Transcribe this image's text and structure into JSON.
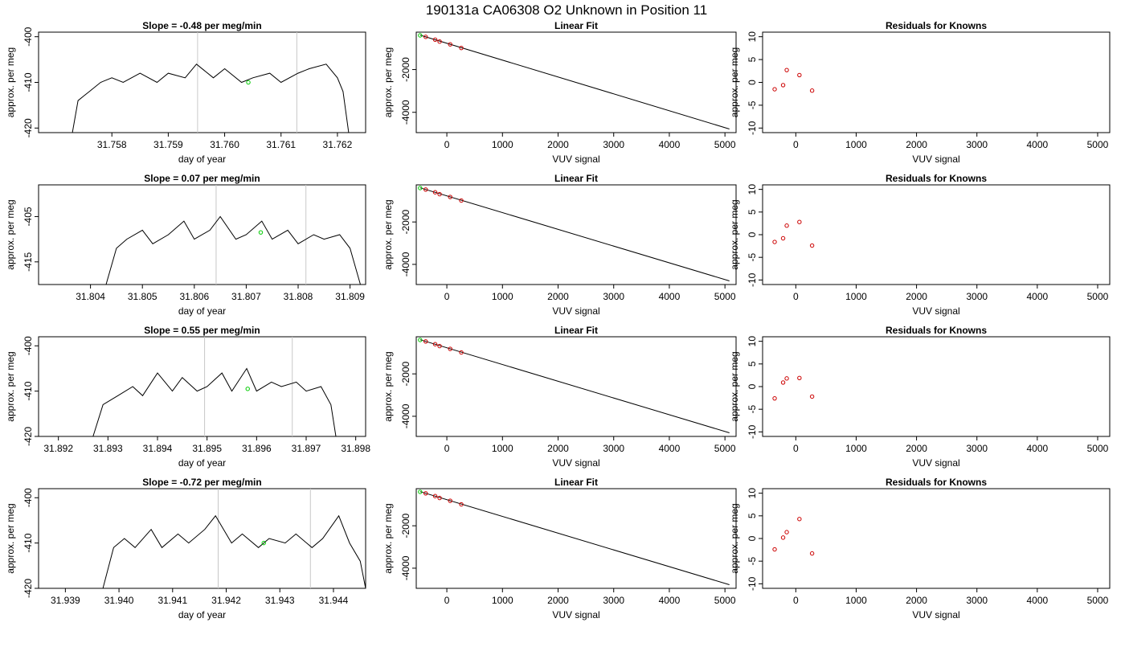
{
  "main_title": "190131a     CA06308   O2 Unknown in Position  11",
  "colors": {
    "trace": "#000000",
    "fit_line": "#000000",
    "known_point": "#cc0000",
    "unknown_point": "#00cc00",
    "marker_line": "#c8c8c8"
  },
  "chart_data": [
    {
      "row": 1,
      "column": "time-series",
      "type": "line",
      "title": "Slope =  -0.48  per meg/min",
      "xlabel": "day of year",
      "ylabel": "approx. per meg",
      "xlim": [
        31.7567,
        31.7625
      ],
      "ylim": [
        -421,
        -399
      ],
      "xticks": [
        "31.758",
        "31.759",
        "31.760",
        "31.761",
        "31.762"
      ],
      "yticks": [
        "-400",
        "-410",
        "-420"
      ],
      "vlines": [
        31.75952,
        31.76128
      ],
      "unknown_point": {
        "x": 31.76042,
        "y": -410.0
      },
      "series": [
        {
          "x": [
            31.7573,
            31.7574,
            31.7575,
            31.7576,
            31.7578,
            31.758,
            31.7582,
            31.7585,
            31.7588,
            31.759,
            31.7593,
            31.7595,
            31.7598,
            31.76,
            31.7603,
            31.7605,
            31.7608,
            31.761,
            31.7613,
            31.7615,
            31.7618,
            31.762,
            31.7621,
            31.7622
          ],
          "y": [
            -421,
            -414,
            -413,
            -412,
            -410,
            -409,
            -410,
            -408,
            -410,
            -408,
            -409,
            -406,
            -409,
            -407,
            -410,
            -409,
            -408,
            -410,
            -408,
            -407,
            -406,
            -409,
            -412,
            -421
          ]
        }
      ]
    },
    {
      "row": 1,
      "column": "fit",
      "type": "scatter",
      "title": "Linear Fit",
      "xlabel": "VUV signal",
      "ylabel": "approx. per meg",
      "xlim": [
        -550,
        5200
      ],
      "ylim": [
        -4950,
        -250
      ],
      "xticks": [
        "0",
        "1000",
        "2000",
        "3000",
        "4000",
        "5000"
      ],
      "yticks": [
        "-2000",
        "-4000"
      ],
      "fit_line": {
        "x": [
          -480,
          5080
        ],
        "y": [
          -390,
          -4780
        ]
      },
      "knowns": {
        "x": [
          -380,
          -210,
          -130,
          60,
          260
        ],
        "y": [
          -470,
          -600,
          -690,
          -820,
          -990
        ]
      },
      "unknown": {
        "x": [
          -480
        ],
        "y": [
          -400
        ]
      }
    },
    {
      "row": 1,
      "column": "residuals",
      "type": "scatter",
      "title": "Residuals for Knowns",
      "xlabel": "VUV signal",
      "ylabel": "approx. per meg",
      "xlim": [
        -550,
        5200
      ],
      "ylim": [
        -11,
        11
      ],
      "xticks": [
        "0",
        "1000",
        "2000",
        "3000",
        "4000",
        "5000"
      ],
      "yticks": [
        "10",
        "5",
        "0",
        "-5",
        "-10"
      ],
      "knowns": {
        "x": [
          -350,
          -210,
          -150,
          60,
          270
        ],
        "y": [
          -1.5,
          -0.6,
          2.7,
          1.6,
          -1.8
        ]
      }
    },
    {
      "row": 2,
      "column": "time-series",
      "type": "line",
      "title": "Slope =  0.07  per meg/min",
      "xlabel": "day of year",
      "ylabel": "approx. per meg",
      "xlim": [
        31.803,
        31.8093
      ],
      "ylim": [
        -420,
        -398
      ],
      "xticks": [
        "31.804",
        "31.805",
        "31.806",
        "31.807",
        "31.808",
        "31.809"
      ],
      "yticks": [
        "-405",
        "-415"
      ],
      "vlines": [
        31.80642,
        31.80815
      ],
      "unknown_point": {
        "x": 31.80728,
        "y": -408.5
      },
      "series": [
        {
          "x": [
            31.8043,
            31.8045,
            31.8047,
            31.805,
            31.8052,
            31.8055,
            31.8058,
            31.806,
            31.8063,
            31.8065,
            31.8068,
            31.807,
            31.8073,
            31.8075,
            31.8078,
            31.808,
            31.8083,
            31.8085,
            31.8088,
            31.809,
            31.8092
          ],
          "y": [
            -420,
            -412,
            -410,
            -408,
            -411,
            -409,
            -406,
            -410,
            -408,
            -405,
            -410,
            -409,
            -406,
            -410,
            -408,
            -411,
            -409,
            -410,
            -409,
            -412,
            -420
          ]
        }
      ]
    },
    {
      "row": 2,
      "column": "fit",
      "type": "scatter",
      "title": "Linear Fit",
      "xlabel": "VUV signal",
      "ylabel": "approx. per meg",
      "xlim": [
        -550,
        5200
      ],
      "ylim": [
        -4950,
        -250
      ],
      "xticks": [
        "0",
        "1000",
        "2000",
        "3000",
        "4000",
        "5000"
      ],
      "yticks": [
        "-2000",
        "-4000"
      ],
      "fit_line": {
        "x": [
          -480,
          5080
        ],
        "y": [
          -390,
          -4780
        ]
      },
      "knowns": {
        "x": [
          -380,
          -210,
          -130,
          60,
          260
        ],
        "y": [
          -470,
          -600,
          -690,
          -820,
          -990
        ]
      },
      "unknown": {
        "x": [
          -480
        ],
        "y": [
          -400
        ]
      }
    },
    {
      "row": 2,
      "column": "residuals",
      "type": "scatter",
      "title": "Residuals for Knowns",
      "xlabel": "VUV signal",
      "ylabel": "approx. per meg",
      "xlim": [
        -550,
        5200
      ],
      "ylim": [
        -11,
        11
      ],
      "xticks": [
        "0",
        "1000",
        "2000",
        "3000",
        "4000",
        "5000"
      ],
      "yticks": [
        "10",
        "5",
        "0",
        "-5",
        "-10"
      ],
      "knowns": {
        "x": [
          -350,
          -210,
          -150,
          60,
          270
        ],
        "y": [
          -1.6,
          -0.8,
          2.0,
          2.8,
          -2.4
        ]
      }
    },
    {
      "row": 3,
      "column": "time-series",
      "type": "line",
      "title": "Slope =  0.55  per meg/min",
      "xlabel": "day of year",
      "ylabel": "approx. per meg",
      "xlim": [
        31.8916,
        31.8982
      ],
      "ylim": [
        -420,
        -398
      ],
      "xticks": [
        "31.892",
        "31.893",
        "31.894",
        "31.895",
        "31.896",
        "31.897",
        "31.898"
      ],
      "yticks": [
        "-400",
        "-410",
        "-420"
      ],
      "vlines": [
        31.89495,
        31.89672
      ],
      "unknown_point": {
        "x": 31.89582,
        "y": -409.5
      },
      "series": [
        {
          "x": [
            31.8927,
            31.8929,
            31.8932,
            31.8935,
            31.8937,
            31.894,
            31.8943,
            31.8945,
            31.8948,
            31.895,
            31.8953,
            31.8955,
            31.8958,
            31.896,
            31.8963,
            31.8965,
            31.8968,
            31.897,
            31.8973,
            31.8975,
            31.8976
          ],
          "y": [
            -420,
            -413,
            -411,
            -409,
            -411,
            -406,
            -410,
            -407,
            -410,
            -409,
            -406,
            -410,
            -405,
            -410,
            -408,
            -409,
            -408,
            -410,
            -409,
            -413,
            -420
          ]
        }
      ]
    },
    {
      "row": 3,
      "column": "fit",
      "type": "scatter",
      "title": "Linear Fit",
      "xlabel": "VUV signal",
      "ylabel": "approx. per meg",
      "xlim": [
        -550,
        5200
      ],
      "ylim": [
        -4950,
        -250
      ],
      "xticks": [
        "0",
        "1000",
        "2000",
        "3000",
        "4000",
        "5000"
      ],
      "yticks": [
        "-2000",
        "-4000"
      ],
      "fit_line": {
        "x": [
          -480,
          5080
        ],
        "y": [
          -390,
          -4780
        ]
      },
      "knowns": {
        "x": [
          -380,
          -210,
          -130,
          60,
          260
        ],
        "y": [
          -470,
          -600,
          -690,
          -820,
          -990
        ]
      },
      "unknown": {
        "x": [
          -480
        ],
        "y": [
          -400
        ]
      }
    },
    {
      "row": 3,
      "column": "residuals",
      "type": "scatter",
      "title": "Residuals for Knowns",
      "xlabel": "VUV signal",
      "ylabel": "approx. per meg",
      "xlim": [
        -550,
        5200
      ],
      "ylim": [
        -11,
        11
      ],
      "xticks": [
        "0",
        "1000",
        "2000",
        "3000",
        "4000",
        "5000"
      ],
      "yticks": [
        "10",
        "5",
        "0",
        "-5",
        "-10"
      ],
      "knowns": {
        "x": [
          -350,
          -210,
          -150,
          60,
          270
        ],
        "y": [
          -2.6,
          0.9,
          1.8,
          1.9,
          -2.2
        ]
      }
    },
    {
      "row": 4,
      "column": "time-series",
      "type": "line",
      "title": "Slope =  -0.72  per meg/min",
      "xlabel": "day of year",
      "ylabel": "approx. per meg",
      "xlim": [
        31.9385,
        31.9446
      ],
      "ylim": [
        -420,
        -398
      ],
      "xticks": [
        "31.939",
        "31.940",
        "31.941",
        "31.942",
        "31.943",
        "31.944"
      ],
      "yticks": [
        "-400",
        "-410",
        "-420"
      ],
      "vlines": [
        31.94185,
        31.94357
      ],
      "unknown_point": {
        "x": 31.9427,
        "y": -410.0
      },
      "series": [
        {
          "x": [
            31.9397,
            31.9399,
            31.9401,
            31.9403,
            31.9406,
            31.9408,
            31.9411,
            31.9413,
            31.9416,
            31.9418,
            31.9421,
            31.9423,
            31.9426,
            31.9428,
            31.9431,
            31.9433,
            31.9436,
            31.9438,
            31.9441,
            31.9443,
            31.9445,
            31.9446
          ],
          "y": [
            -420,
            -411,
            -409,
            -411,
            -407,
            -411,
            -408,
            -410,
            -407,
            -404,
            -410,
            -408,
            -411,
            -409,
            -410,
            -408,
            -411,
            -409,
            -404,
            -410,
            -414,
            -420
          ]
        }
      ]
    },
    {
      "row": 4,
      "column": "fit",
      "type": "scatter",
      "title": "Linear Fit",
      "xlabel": "VUV signal",
      "ylabel": "approx. per meg",
      "xlim": [
        -550,
        5200
      ],
      "ylim": [
        -4950,
        -250
      ],
      "xticks": [
        "0",
        "1000",
        "2000",
        "3000",
        "4000",
        "5000"
      ],
      "yticks": [
        "-2000",
        "-4000"
      ],
      "fit_line": {
        "x": [
          -480,
          5080
        ],
        "y": [
          -390,
          -4780
        ]
      },
      "knowns": {
        "x": [
          -380,
          -210,
          -130,
          60,
          260
        ],
        "y": [
          -470,
          -600,
          -690,
          -820,
          -990
        ]
      },
      "unknown": {
        "x": [
          -480
        ],
        "y": [
          -400
        ]
      }
    },
    {
      "row": 4,
      "column": "residuals",
      "type": "scatter",
      "title": "Residuals for Knowns",
      "xlabel": "VUV signal",
      "ylabel": "approx. per meg",
      "xlim": [
        -550,
        5200
      ],
      "ylim": [
        -11,
        11
      ],
      "xticks": [
        "0",
        "1000",
        "2000",
        "3000",
        "4000",
        "5000"
      ],
      "yticks": [
        "10",
        "5",
        "0",
        "-5",
        "-10"
      ],
      "knowns": {
        "x": [
          -350,
          -210,
          -150,
          60,
          270
        ],
        "y": [
          -2.4,
          0.2,
          1.4,
          4.3,
          -3.3
        ]
      }
    }
  ]
}
